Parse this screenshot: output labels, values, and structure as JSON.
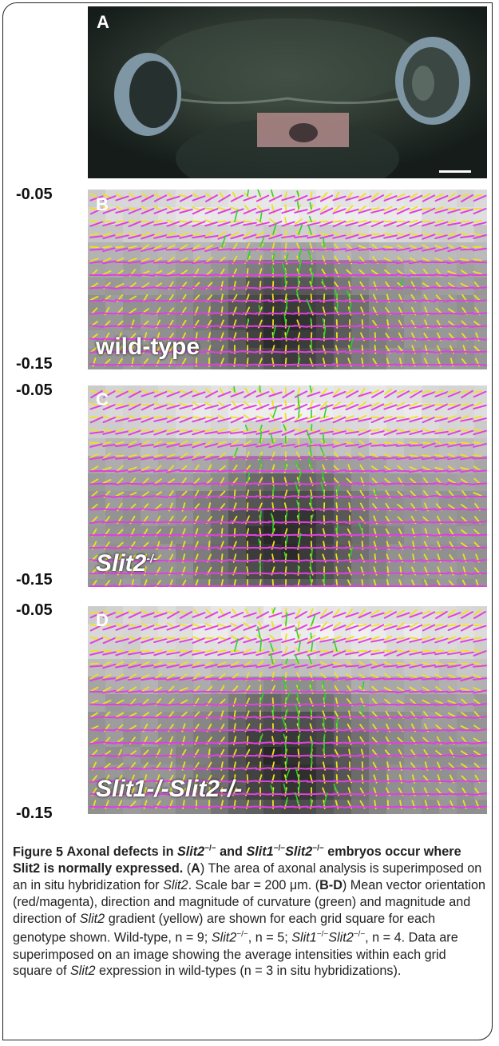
{
  "panels": [
    {
      "label": "A",
      "genotype": "",
      "genotype_sup": ""
    },
    {
      "label": "B",
      "genotype": "wild-type",
      "genotype_sup": ""
    },
    {
      "label": "C",
      "genotype": "Slit2",
      "genotype_sup": "-/-"
    },
    {
      "label": "D",
      "genotype": "Slit1-/-Slit2-/-",
      "genotype_sup": ""
    }
  ],
  "y_ticks": {
    "top": "-0.05",
    "bottom": "-0.15"
  },
  "caption": {
    "figure_label": "Figure 5",
    "title_part1": "Axonal defects in",
    "gene1": "Slit2",
    "sup1": "−/−",
    "and": "and",
    "gene2a": "Slit1",
    "sup2a": "−/−",
    "gene2b": "Slit2",
    "sup2b": "−/−",
    "title_part2": "embryos occur where Slit2 is normally expressed.",
    "A_label": "A",
    "A_text": "The area of axonal analysis is superimposed on an in situ hybridization for",
    "A_gene": "Slit2",
    "scale_text": ". Scale bar = 200 μm.",
    "BD_label": "B-D",
    "BD_text1": "Mean vector orientation (red/magenta), direction and magnitude of curvature (green) and magnitude and direction of",
    "BD_gene": "Slit2",
    "BD_text2": "gradient (yellow) are shown for each grid square for each genotype shown. Wild-type, n = 9;",
    "n_gene1": "Slit2",
    "n_sup1": "−/−",
    "n_text1": ", n = 5;",
    "n_gene2a": "Slit1",
    "n_sup2a": "−/−",
    "n_gene2b": "Slit2",
    "n_sup2b": "−/−",
    "n_text2": ", n = 4. Data are superimposed on an image showing the average intensities within each grid square of",
    "final_gene": "Slit2",
    "final_text": "expression in wild-types (n = 3 in situ hybridizations)."
  },
  "colors": {
    "orientation": "#e040e0",
    "curvature": "#30d030",
    "gradient": "#f0e020"
  }
}
